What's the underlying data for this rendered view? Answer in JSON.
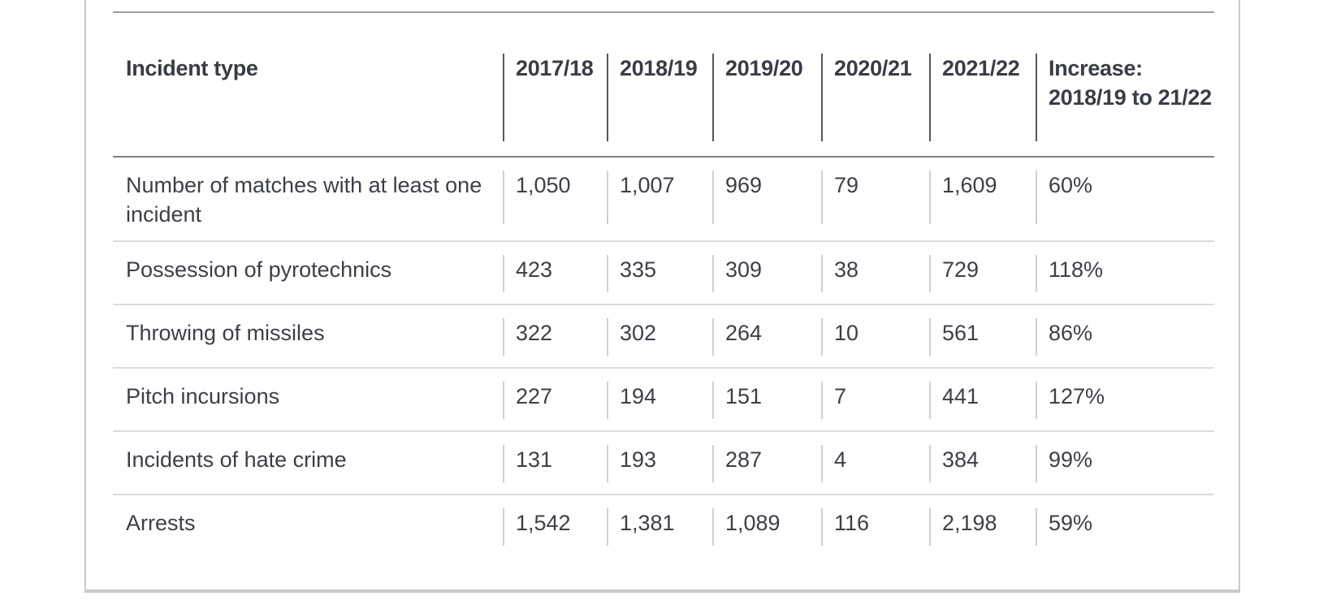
{
  "table": {
    "headers": [
      "Incident type",
      "2017/18",
      "2018/19",
      "2019/20",
      "2020/21",
      "2021/22",
      "Increase: 2018/19 to 21/22"
    ],
    "rows": [
      [
        "Number of matches with at least one incident",
        "1,050",
        "1,007",
        "969",
        "79",
        "1,609",
        "60%"
      ],
      [
        "Possession of pyrotechnics",
        "423",
        "335",
        "309",
        "38",
        "729",
        "118%"
      ],
      [
        "Throwing of missiles",
        "322",
        "302",
        "264",
        "10",
        "561",
        "86%"
      ],
      [
        "Pitch incursions",
        "227",
        "194",
        "151",
        "7",
        "441",
        "127%"
      ],
      [
        "Incidents of hate crime",
        "131",
        "193",
        "287",
        "4",
        "384",
        "99%"
      ],
      [
        "Arrests",
        "1,542",
        "1,381",
        "1,089",
        "116",
        "2,198",
        "59%"
      ]
    ]
  }
}
